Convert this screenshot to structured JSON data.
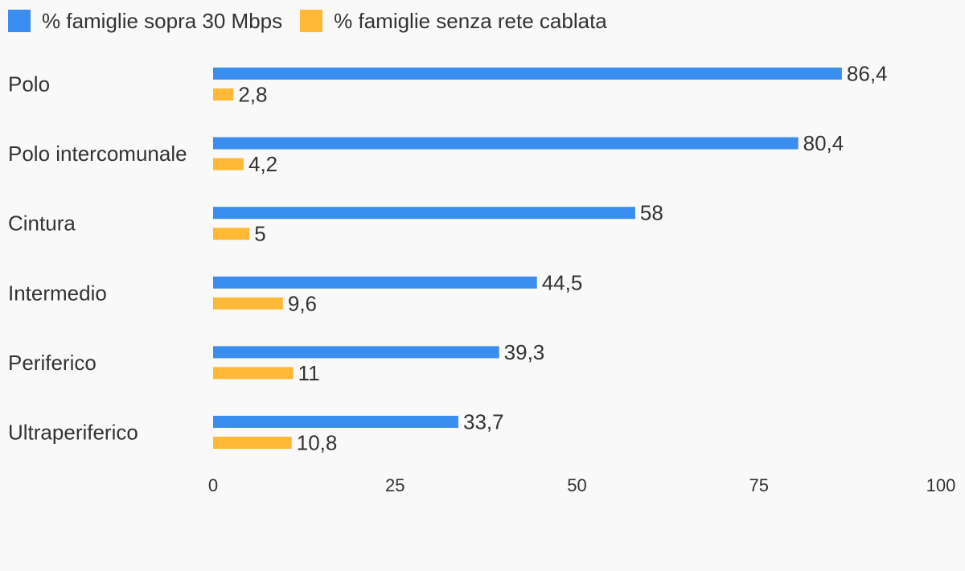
{
  "chart_data": {
    "type": "bar",
    "orientation": "horizontal",
    "categories": [
      "Polo",
      "Polo intercomunale",
      "Cintura",
      "Intermedio",
      "Periferico",
      "Ultraperiferico"
    ],
    "series": [
      {
        "name": "% famiglie sopra 30 Mbps",
        "color": "#3a8ef0",
        "values": [
          86.4,
          80.4,
          58,
          44.5,
          39.3,
          33.7
        ],
        "labels": [
          "86,4",
          "80,4",
          "58",
          "44,5",
          "39,3",
          "33,7"
        ]
      },
      {
        "name": "% famiglie senza rete cablata",
        "color": "#ffb937",
        "values": [
          2.8,
          4.2,
          5,
          9.6,
          11,
          10.8
        ],
        "labels": [
          "2,8",
          "4,2",
          "5",
          "9,6",
          "11",
          "10,8"
        ]
      }
    ],
    "xlim": [
      0,
      100
    ],
    "xticks": [
      "0",
      "25",
      "50",
      "75",
      "100"
    ],
    "legend": "top-left",
    "grid": false
  }
}
